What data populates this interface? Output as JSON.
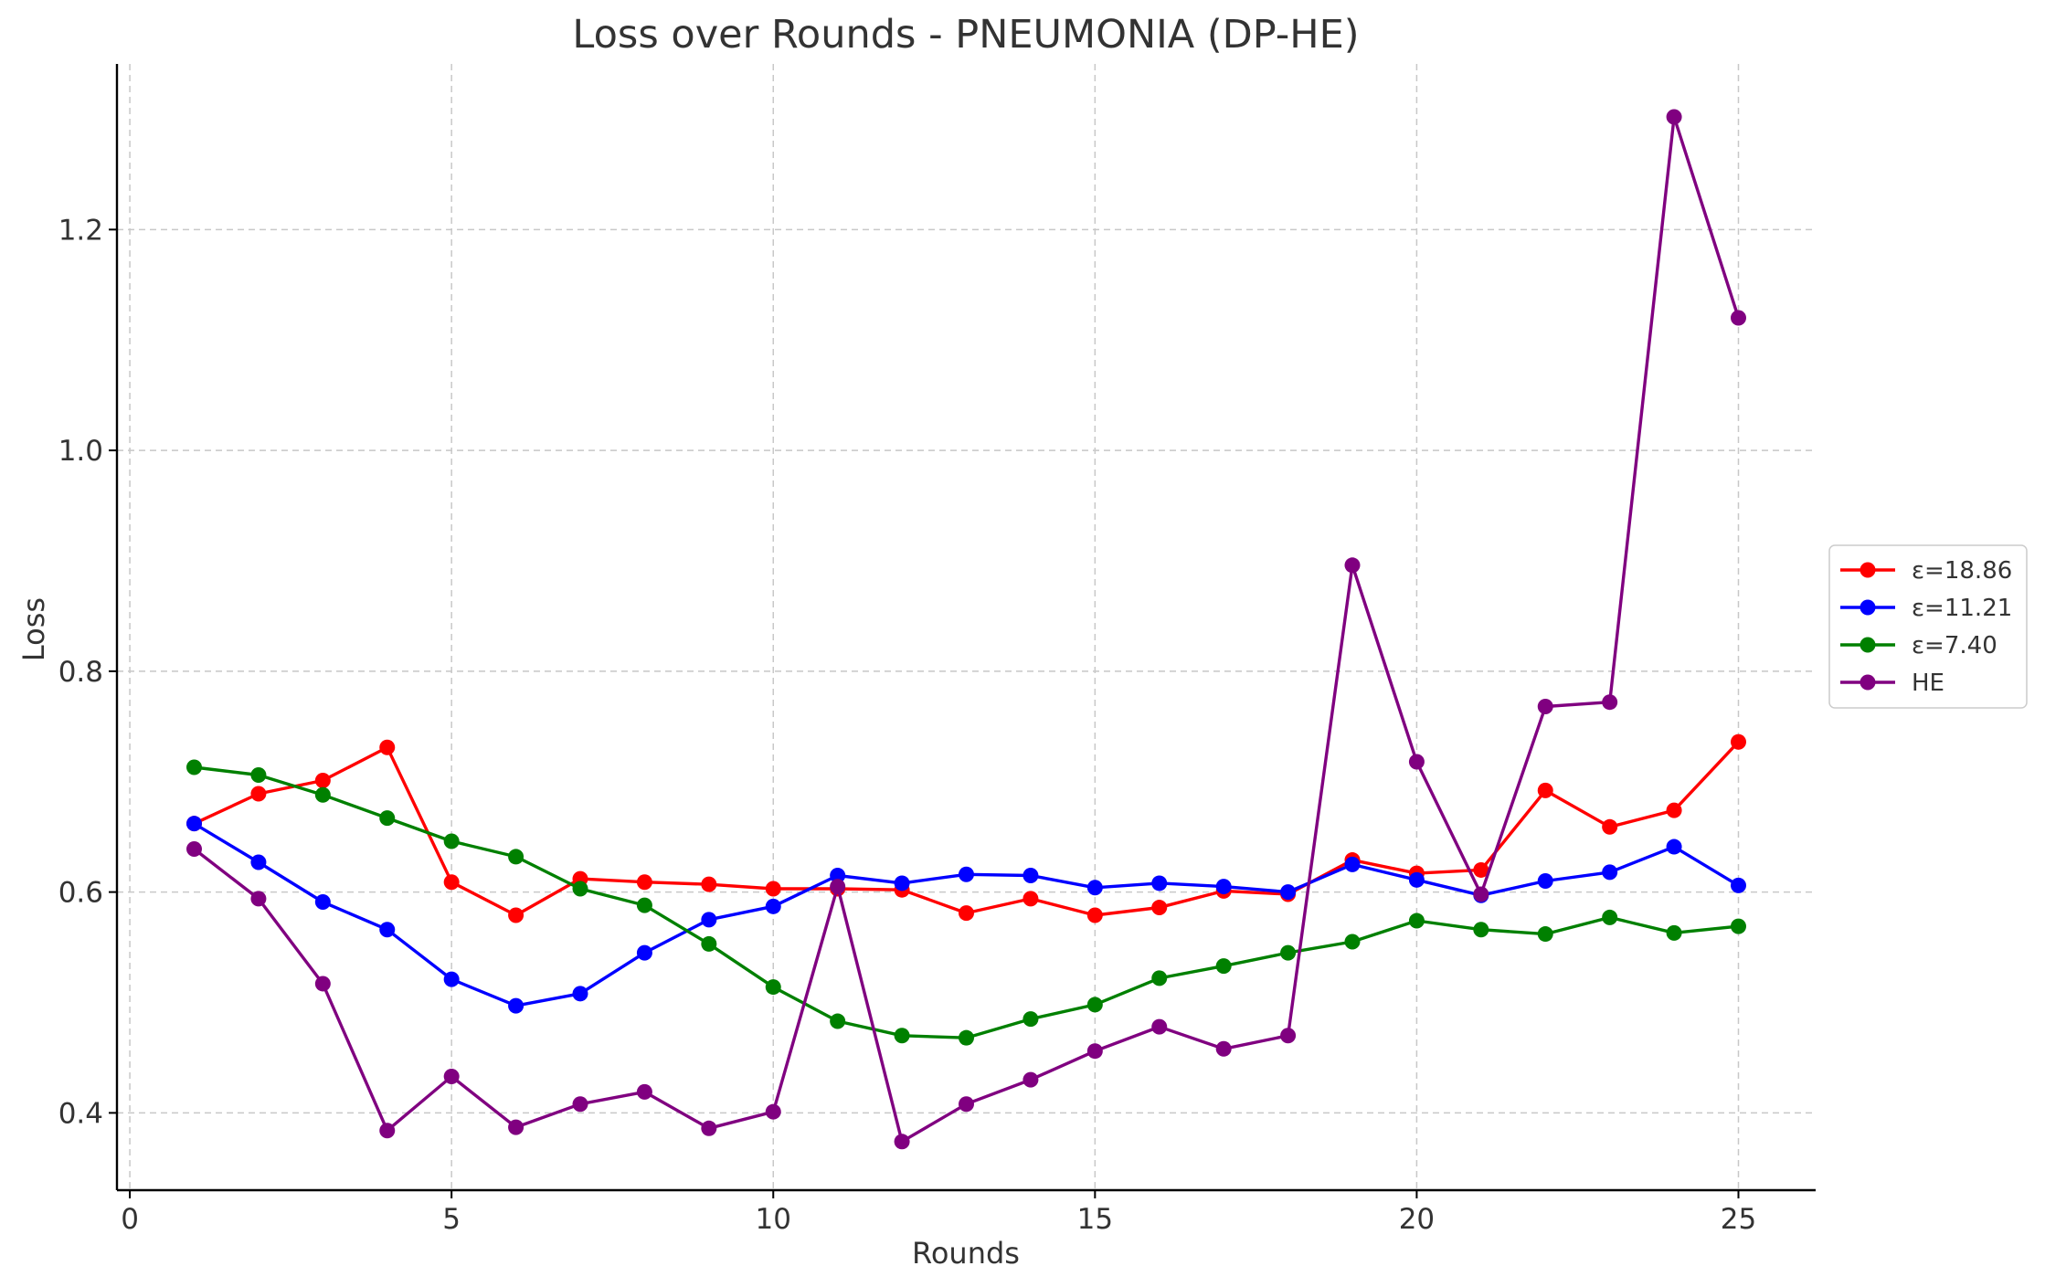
{
  "chart_data": {
    "type": "line",
    "title": "Loss over Rounds - PNEUMONIA (DP-HE)",
    "xlabel": "Rounds",
    "ylabel": "Loss",
    "xlim": [
      -0.2,
      26.2
    ],
    "ylim": [
      0.33,
      1.35
    ],
    "xticks": [
      0,
      5,
      10,
      15,
      20,
      25
    ],
    "yticks": [
      0.4,
      0.6,
      0.8,
      1.0,
      1.2
    ],
    "xtick_labels": [
      "0",
      "5",
      "10",
      "15",
      "20",
      "25"
    ],
    "ytick_labels": [
      "0.4",
      "0.6",
      "0.8",
      "1.0",
      "1.2"
    ],
    "grid": true,
    "legend_position": "right, outside",
    "x": [
      1,
      2,
      3,
      4,
      5,
      6,
      7,
      8,
      9,
      10,
      11,
      12,
      13,
      14,
      15,
      16,
      17,
      18,
      19,
      20,
      21,
      22,
      23,
      24,
      25
    ],
    "series": [
      {
        "name": "ε=18.86",
        "color": "#ff0000",
        "values": [
          0.662,
          0.689,
          0.701,
          0.731,
          0.609,
          0.579,
          0.612,
          0.609,
          0.607,
          0.603,
          0.603,
          0.602,
          0.581,
          0.594,
          0.579,
          0.586,
          0.601,
          0.598,
          0.629,
          0.617,
          0.62,
          0.692,
          0.659,
          0.674,
          0.736
        ]
      },
      {
        "name": "ε=11.21",
        "color": "#0000ff",
        "values": [
          0.662,
          0.627,
          0.591,
          0.566,
          0.521,
          0.497,
          0.508,
          0.545,
          0.575,
          0.587,
          0.615,
          0.608,
          0.616,
          0.615,
          0.604,
          0.608,
          0.605,
          0.6,
          0.625,
          0.611,
          0.597,
          0.61,
          0.618,
          0.641,
          0.606
        ]
      },
      {
        "name": "ε=7.40",
        "color": "#008000",
        "values": [
          0.713,
          0.706,
          0.688,
          0.667,
          0.646,
          0.632,
          0.603,
          0.588,
          0.553,
          0.514,
          0.483,
          0.47,
          0.468,
          0.485,
          0.498,
          0.522,
          0.533,
          0.545,
          0.555,
          0.574,
          0.566,
          0.562,
          0.577,
          0.563,
          0.569
        ]
      },
      {
        "name": "HE",
        "color": "#800080",
        "values": [
          0.639,
          0.594,
          0.517,
          0.384,
          0.433,
          0.387,
          0.408,
          0.419,
          0.386,
          0.401,
          0.605,
          0.374,
          0.408,
          0.43,
          0.456,
          0.478,
          0.458,
          0.47,
          0.896,
          0.718,
          0.598,
          0.768,
          0.772,
          1.302,
          1.12
        ]
      }
    ]
  }
}
